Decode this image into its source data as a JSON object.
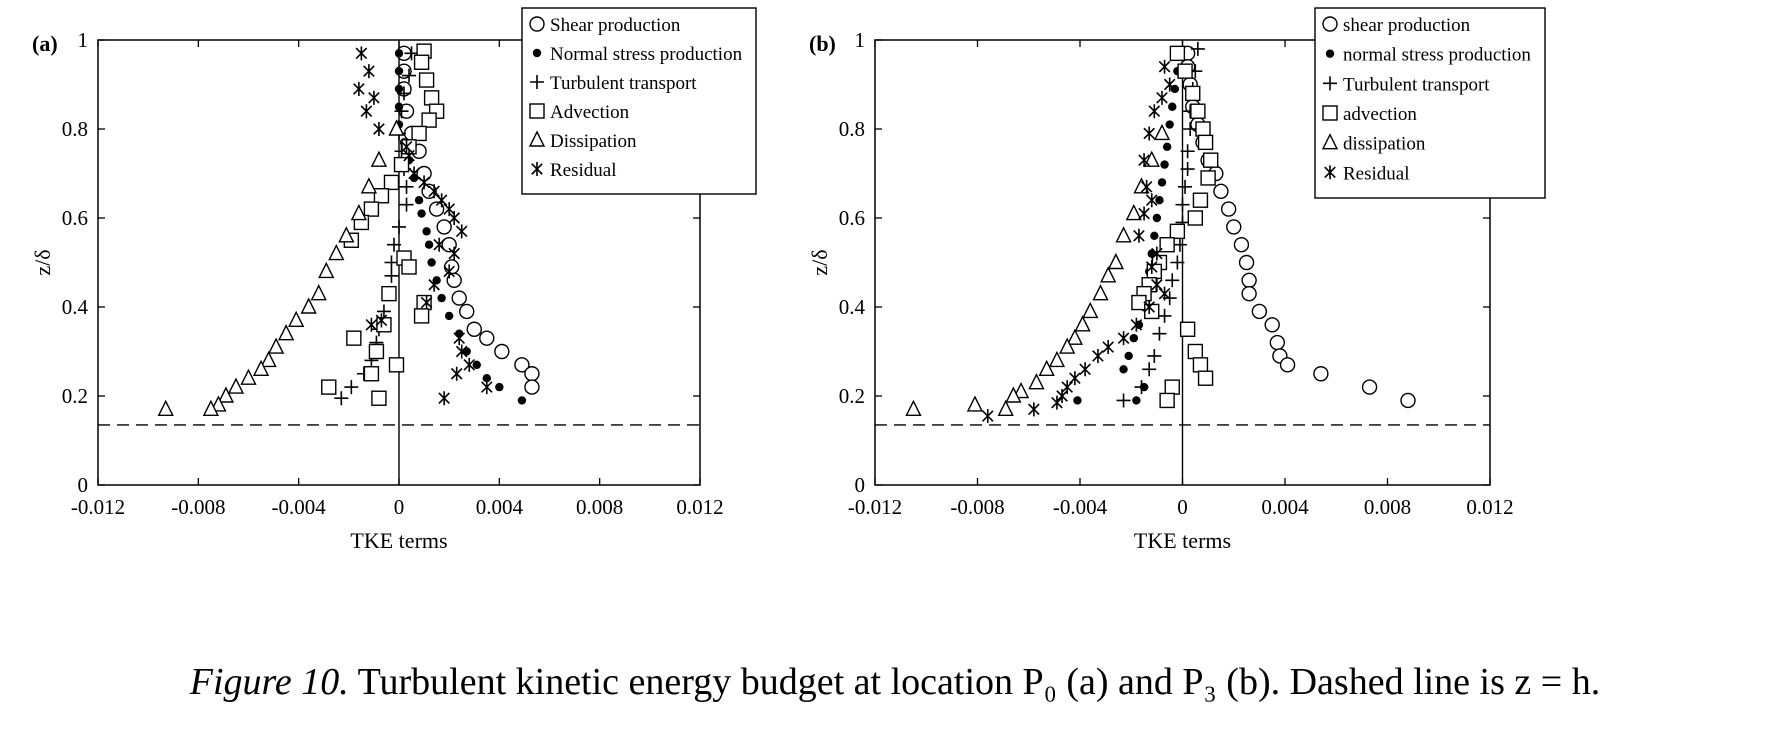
{
  "caption": {
    "label": "Figure  10.",
    "text": "Turbulent kinetic energy budget at location P₀ (a) and P₃ (b). Dashed line is z = h."
  },
  "chart_data": [
    {
      "type": "scatter",
      "panel_label": "(a)",
      "xlabel": "TKE terms",
      "ylabel": "z/δ",
      "xlim": [
        -0.012,
        0.012
      ],
      "ylim": [
        0,
        1
      ],
      "xticks": [
        -0.012,
        -0.008,
        -0.004,
        0,
        0.004,
        0.008,
        0.012
      ],
      "xtick_labels": [
        "-0.012",
        "-0.008",
        "-0.004",
        "0",
        "0.004",
        "0.008",
        "0.012"
      ],
      "yticks": [
        0,
        0.2,
        0.4,
        0.6,
        0.8,
        1
      ],
      "ytick_labels": [
        "0",
        "0.2",
        "0.4",
        "0.6",
        "0.8",
        "1"
      ],
      "grid": false,
      "legend_position": "top-right",
      "reference_lines": [
        {
          "orientation": "horizontal",
          "value": 0.135,
          "style": "dashed"
        },
        {
          "orientation": "vertical",
          "value": 0,
          "style": "solid"
        }
      ],
      "series": [
        {
          "name": "Shear production",
          "marker": "circle-open",
          "x": [
            0.0002,
            0.0002,
            0.0002,
            0.0003,
            0.0005,
            0.0008,
            0.001,
            0.0012,
            0.0015,
            0.0018,
            0.002,
            0.0021,
            0.0022,
            0.0024,
            0.0027,
            0.003,
            0.0035,
            0.0041,
            0.0049,
            0.0053,
            0.0053
          ],
          "y": [
            0.97,
            0.93,
            0.89,
            0.84,
            0.79,
            0.75,
            0.7,
            0.66,
            0.62,
            0.58,
            0.54,
            0.49,
            0.46,
            0.42,
            0.39,
            0.35,
            0.33,
            0.3,
            0.27,
            0.25,
            0.22
          ]
        },
        {
          "name": "Normal stress production",
          "marker": "dot",
          "x": [
            0,
            0,
            0,
            0,
            0,
            0.0002,
            0.0004,
            0.0006,
            0.0008,
            0.0009,
            0.0011,
            0.0012,
            0.0013,
            0.0015,
            0.0017,
            0.002,
            0.0024,
            0.0027,
            0.0031,
            0.0035,
            0.004,
            0.0049
          ],
          "y": [
            0.97,
            0.93,
            0.89,
            0.85,
            0.81,
            0.77,
            0.73,
            0.69,
            0.64,
            0.61,
            0.57,
            0.54,
            0.5,
            0.46,
            0.42,
            0.38,
            0.34,
            0.3,
            0.27,
            0.24,
            0.22,
            0.19
          ]
        },
        {
          "name": "Turbulent transport",
          "marker": "plus",
          "x": [
            0.0005,
            0.0004,
            0.0002,
            0.0001,
            0,
            0.0001,
            0.0002,
            0.0003,
            0.0003,
            0,
            -0.0002,
            -0.0003,
            -0.0003,
            -0.0004,
            -0.0006,
            -0.0008,
            -0.0009,
            -0.0011,
            -0.0014,
            -0.0019,
            -0.0023
          ],
          "y": [
            0.97,
            0.92,
            0.88,
            0.84,
            0.79,
            0.75,
            0.71,
            0.67,
            0.63,
            0.58,
            0.54,
            0.5,
            0.47,
            0.43,
            0.39,
            0.35,
            0.32,
            0.28,
            0.25,
            0.22,
            0.195
          ]
        },
        {
          "name": "Advection",
          "marker": "square-open",
          "x": [
            0.001,
            0.0009,
            0.0011,
            0.0013,
            0.0015,
            0.0012,
            0.0008,
            0.0004,
            0.0001,
            -0.0003,
            -0.0007,
            -0.0011,
            -0.0015,
            -0.0019,
            0.0002,
            0.0004,
            0.001,
            0.0009,
            -0.0004,
            -0.0006,
            -0.0009,
            -0.0018,
            -0.0011,
            -0.0028,
            -0.0001,
            -0.0008
          ],
          "y": [
            0.975,
            0.95,
            0.91,
            0.87,
            0.84,
            0.82,
            0.79,
            0.76,
            0.72,
            0.68,
            0.65,
            0.62,
            0.59,
            0.55,
            0.51,
            0.49,
            0.41,
            0.38,
            0.43,
            0.36,
            0.3,
            0.33,
            0.25,
            0.22,
            0.27,
            0.195
          ]
        },
        {
          "name": "Dissipation",
          "marker": "triangle-open",
          "x": [
            -0.0001,
            -0.0008,
            -0.0012,
            -0.0016,
            -0.0021,
            -0.0025,
            -0.0029,
            -0.0032,
            -0.0036,
            -0.0041,
            -0.0045,
            -0.0049,
            -0.0052,
            -0.0055,
            -0.006,
            -0.0065,
            -0.0069,
            -0.0072,
            -0.0075,
            -0.0093
          ],
          "y": [
            0.8,
            0.73,
            0.67,
            0.61,
            0.56,
            0.52,
            0.48,
            0.43,
            0.4,
            0.37,
            0.34,
            0.31,
            0.28,
            0.26,
            0.24,
            0.22,
            0.2,
            0.18,
            0.17,
            0.17
          ]
        },
        {
          "name": "Residual",
          "marker": "asterisk",
          "x": [
            -0.0015,
            -0.0012,
            -0.0016,
            -0.001,
            -0.0013,
            -0.0008,
            0.0003,
            0.0004,
            0.0006,
            0.001,
            0.0014,
            0.0017,
            0.002,
            0.0022,
            0.0025,
            0.0016,
            0.0022,
            0.002,
            0.0014,
            0.0011,
            -0.0007,
            -0.0011,
            0.0024,
            0.0025,
            0.0028,
            0.0023,
            0.0035,
            0.0018
          ],
          "y": [
            0.97,
            0.93,
            0.89,
            0.87,
            0.84,
            0.8,
            0.76,
            0.74,
            0.7,
            0.68,
            0.66,
            0.64,
            0.62,
            0.6,
            0.57,
            0.54,
            0.52,
            0.48,
            0.45,
            0.41,
            0.37,
            0.36,
            0.33,
            0.3,
            0.27,
            0.25,
            0.22,
            0.195
          ]
        }
      ],
      "legend": [
        "Shear production",
        "Normal stress production",
        "Turbulent transport",
        "Advection",
        "Dissipation",
        "Residual"
      ]
    },
    {
      "type": "scatter",
      "panel_label": "(b)",
      "xlabel": "TKE terms",
      "ylabel": "z/δ",
      "xlim": [
        -0.012,
        0.012
      ],
      "ylim": [
        0,
        1
      ],
      "xticks": [
        -0.012,
        -0.008,
        -0.004,
        0,
        0.004,
        0.008,
        0.012
      ],
      "xtick_labels": [
        "-0.012",
        "-0.008",
        "-0.004",
        "0",
        "0.004",
        "0.008",
        "0.012"
      ],
      "yticks": [
        0,
        0.2,
        0.4,
        0.6,
        0.8,
        1
      ],
      "ytick_labels": [
        "0",
        "0.2",
        "0.4",
        "0.6",
        "0.8",
        "1"
      ],
      "grid": false,
      "legend_position": "top-right",
      "reference_lines": [
        {
          "orientation": "horizontal",
          "value": 0.135,
          "style": "dashed"
        },
        {
          "orientation": "vertical",
          "value": 0,
          "style": "solid"
        }
      ],
      "series": [
        {
          "name": "shear production",
          "marker": "circle-open",
          "x": [
            0.0002,
            0.0002,
            0.0003,
            0.0004,
            0.0006,
            0.0008,
            0.001,
            0.0013,
            0.0015,
            0.0018,
            0.002,
            0.0023,
            0.0025,
            0.0026,
            0.0026,
            0.003,
            0.0035,
            0.0037,
            0.0038,
            0.0041,
            0.0054,
            0.0073,
            0.0088
          ],
          "y": [
            0.97,
            0.94,
            0.9,
            0.85,
            0.81,
            0.77,
            0.73,
            0.7,
            0.66,
            0.62,
            0.58,
            0.54,
            0.5,
            0.46,
            0.43,
            0.39,
            0.36,
            0.32,
            0.29,
            0.27,
            0.25,
            0.22,
            0.19
          ]
        },
        {
          "name": "normal stress production",
          "marker": "dot",
          "x": [
            -0.0001,
            -0.0002,
            -0.0003,
            -0.0004,
            -0.0005,
            -0.0006,
            -0.0007,
            -0.0008,
            -0.0009,
            -0.001,
            -0.0011,
            -0.0012,
            -0.0013,
            -0.0014,
            -0.0015,
            -0.0017,
            -0.0019,
            -0.0021,
            -0.0023,
            -0.0015,
            -0.0018,
            -0.0041
          ],
          "y": [
            0.97,
            0.93,
            0.89,
            0.85,
            0.81,
            0.76,
            0.72,
            0.68,
            0.64,
            0.6,
            0.56,
            0.52,
            0.48,
            0.44,
            0.4,
            0.36,
            0.33,
            0.29,
            0.26,
            0.22,
            0.19,
            0.19
          ]
        },
        {
          "name": "Turbulent transport",
          "marker": "plus",
          "x": [
            0.0006,
            0.0005,
            0.0004,
            0.0003,
            0.0003,
            0.0002,
            0.0002,
            0.0001,
            0,
            0,
            -0.0001,
            -0.0002,
            -0.0004,
            -0.0005,
            -0.0007,
            -0.0009,
            -0.0011,
            -0.0013,
            -0.0016,
            -0.0023
          ],
          "y": [
            0.98,
            0.93,
            0.89,
            0.84,
            0.8,
            0.75,
            0.71,
            0.67,
            0.63,
            0.59,
            0.54,
            0.5,
            0.46,
            0.42,
            0.38,
            0.34,
            0.29,
            0.26,
            0.22,
            0.19
          ]
        },
        {
          "name": "advection",
          "marker": "square-open",
          "x": [
            -0.0002,
            0.0001,
            0.0004,
            0.0006,
            0.0008,
            0.0009,
            0.0011,
            0.001,
            0.0007,
            0.0005,
            -0.0002,
            -0.0006,
            -0.0009,
            -0.0011,
            -0.0013,
            -0.0015,
            -0.0017,
            -0.0012,
            0.0002,
            0.0005,
            0.0007,
            0.0009,
            -0.0004,
            -0.0006
          ],
          "y": [
            0.97,
            0.93,
            0.88,
            0.84,
            0.8,
            0.77,
            0.73,
            0.69,
            0.64,
            0.6,
            0.57,
            0.54,
            0.5,
            0.48,
            0.45,
            0.43,
            0.41,
            0.39,
            0.35,
            0.3,
            0.27,
            0.24,
            0.22,
            0.19
          ]
        },
        {
          "name": "dissipation",
          "marker": "triangle-open",
          "x": [
            -0.0008,
            -0.0012,
            -0.0016,
            -0.0019,
            -0.0023,
            -0.0026,
            -0.0029,
            -0.0032,
            -0.0036,
            -0.0039,
            -0.0042,
            -0.0045,
            -0.0049,
            -0.0053,
            -0.0057,
            -0.0063,
            -0.0066,
            -0.0069,
            -0.0081,
            -0.0105
          ],
          "y": [
            0.79,
            0.73,
            0.67,
            0.61,
            0.56,
            0.5,
            0.47,
            0.43,
            0.39,
            0.36,
            0.33,
            0.31,
            0.28,
            0.26,
            0.23,
            0.21,
            0.2,
            0.17,
            0.18,
            0.17
          ]
        },
        {
          "name": "Residual",
          "marker": "asterisk",
          "x": [
            -0.0007,
            -0.0005,
            -0.0008,
            -0.0011,
            -0.0013,
            -0.0015,
            -0.0014,
            -0.0012,
            -0.0015,
            -0.0017,
            -0.001,
            -0.0012,
            -0.001,
            -0.0007,
            -0.0013,
            -0.0018,
            -0.0023,
            -0.0029,
            -0.0033,
            -0.0038,
            -0.0042,
            -0.0045,
            -0.0047,
            -0.0049,
            -0.0058,
            -0.0076
          ],
          "y": [
            0.94,
            0.9,
            0.87,
            0.84,
            0.79,
            0.73,
            0.67,
            0.64,
            0.61,
            0.56,
            0.52,
            0.49,
            0.45,
            0.43,
            0.4,
            0.36,
            0.33,
            0.31,
            0.29,
            0.26,
            0.24,
            0.22,
            0.2,
            0.185,
            0.17,
            0.155
          ]
        }
      ],
      "legend": [
        "shear production",
        "normal stress production",
        "Turbulent transport",
        "advection",
        "dissipation",
        "Residual"
      ]
    }
  ]
}
